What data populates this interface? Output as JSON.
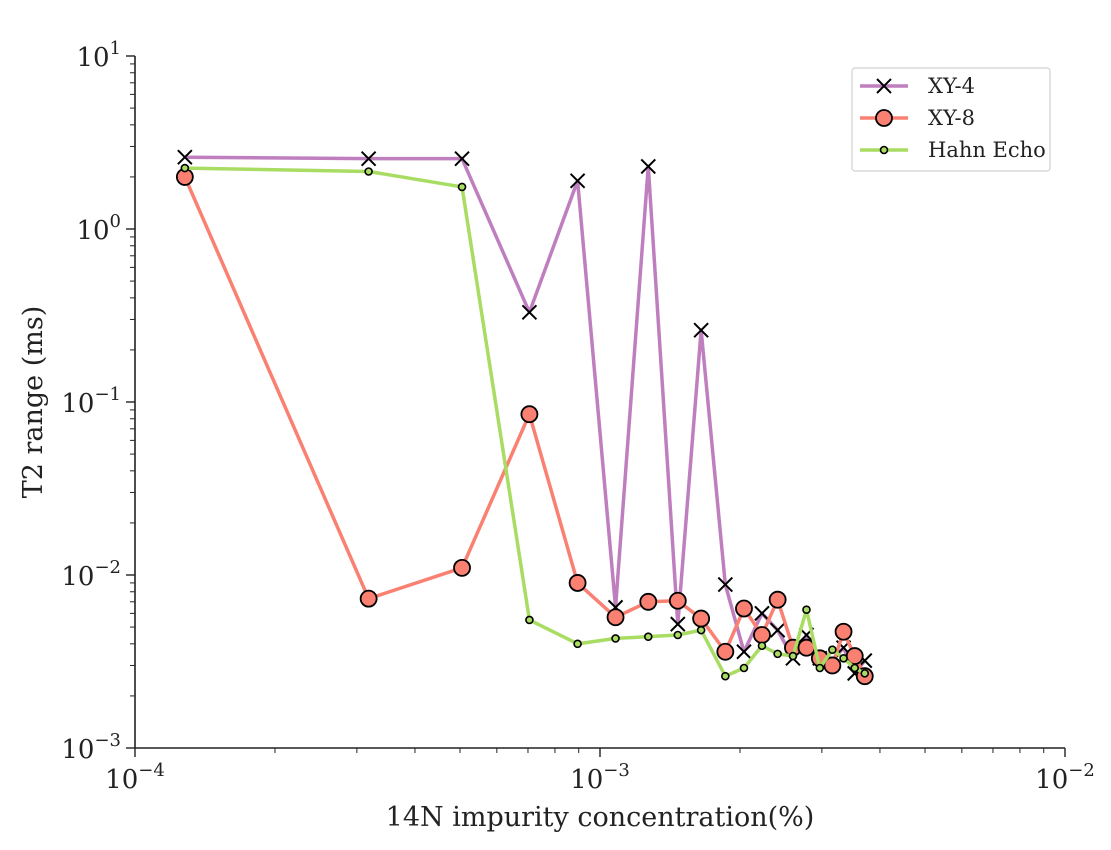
{
  "chart_data": {
    "type": "line",
    "title": "",
    "xlabel": "14N impurity concentration(%)",
    "ylabel": "T2 range (ms)",
    "xscale": "log",
    "yscale": "log",
    "xlim": [
      0.0001,
      0.01
    ],
    "ylim": [
      0.001,
      10
    ],
    "x_ticks": [
      {
        "value": 0.0001,
        "base": "10",
        "exp": "−4"
      },
      {
        "value": 0.001,
        "base": "10",
        "exp": "−3"
      },
      {
        "value": 0.01,
        "base": "10",
        "exp": "−2"
      }
    ],
    "y_ticks": [
      {
        "value": 0.001,
        "base": "10",
        "exp": "−3"
      },
      {
        "value": 0.01,
        "base": "10",
        "exp": "−2"
      },
      {
        "value": 0.1,
        "base": "10",
        "exp": "−1"
      },
      {
        "value": 1,
        "base": "10",
        "exp": "0"
      },
      {
        "value": 10,
        "base": "10",
        "exp": "1"
      }
    ],
    "grid": false,
    "legend_position": "top-right",
    "series": [
      {
        "name": "XY-4",
        "color": "#bf7fbf",
        "marker": "x",
        "x": [
          0.000128,
          0.000318,
          0.000505,
          0.000705,
          0.000895,
          0.00108,
          0.00127,
          0.00147,
          0.00165,
          0.00186,
          0.00204,
          0.00223,
          0.00241,
          0.0026,
          0.00278,
          0.00297,
          0.00316,
          0.00334,
          0.00353,
          0.00371
        ],
        "y": [
          2.6,
          2.55,
          2.55,
          0.33,
          1.9,
          0.0065,
          2.3,
          0.0052,
          0.26,
          0.0088,
          0.0036,
          0.006,
          0.0048,
          0.0033,
          0.0045,
          0.0033,
          0.0032,
          0.0038,
          0.0027,
          0.0032
        ]
      },
      {
        "name": "XY-8",
        "color": "#fa8072",
        "marker": "o",
        "x": [
          0.000128,
          0.000318,
          0.000505,
          0.000705,
          0.000895,
          0.00108,
          0.00127,
          0.00147,
          0.00165,
          0.00186,
          0.00204,
          0.00223,
          0.00241,
          0.0026,
          0.00278,
          0.00297,
          0.00316,
          0.00334,
          0.00353,
          0.00371
        ],
        "y": [
          2.0,
          0.0073,
          0.011,
          0.085,
          0.009,
          0.0057,
          0.007,
          0.0071,
          0.0056,
          0.0036,
          0.0064,
          0.0045,
          0.0072,
          0.0038,
          0.0038,
          0.0033,
          0.003,
          0.0047,
          0.0034,
          0.0026
        ]
      },
      {
        "name": "Hahn Echo",
        "color": "#a9dc62",
        "marker": "dot",
        "x": [
          0.000128,
          0.000318,
          0.000505,
          0.000705,
          0.000895,
          0.00108,
          0.00127,
          0.00147,
          0.00165,
          0.00186,
          0.00204,
          0.00223,
          0.00241,
          0.0026,
          0.00278,
          0.00297,
          0.00316,
          0.00334,
          0.00353,
          0.00371
        ],
        "y": [
          2.25,
          2.15,
          1.75,
          0.0055,
          0.004,
          0.0043,
          0.0044,
          0.0045,
          0.0048,
          0.0026,
          0.0029,
          0.0039,
          0.0035,
          0.0034,
          0.0063,
          0.0029,
          0.0037,
          0.0033,
          0.0029,
          0.0027
        ]
      }
    ]
  }
}
